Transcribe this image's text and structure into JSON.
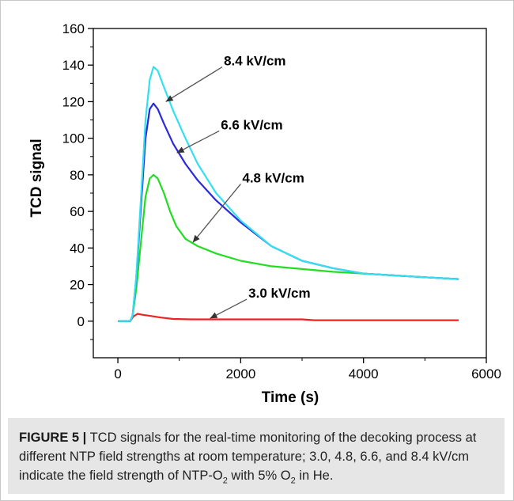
{
  "chart_data": {
    "type": "line",
    "xlabel": "Time (s)",
    "ylabel": "TCD signal",
    "xlim": [
      -400,
      6000
    ],
    "ylim": [
      -20,
      160
    ],
    "xticks": [
      0,
      2000,
      4000,
      6000
    ],
    "yticks": [
      0,
      20,
      40,
      60,
      80,
      100,
      120,
      140,
      160
    ],
    "grid": false,
    "legend": "none",
    "series": [
      {
        "name": "8.4 kV/cm",
        "color": "#33e0f0",
        "x": [
          0,
          200,
          240,
          300,
          380,
          450,
          520,
          580,
          650,
          750,
          900,
          1100,
          1300,
          1600,
          2000,
          2500,
          3000,
          3500,
          4000,
          4500,
          5000,
          5550
        ],
        "y": [
          0,
          0,
          3,
          25,
          70,
          110,
          132,
          139,
          137,
          128,
          115,
          100,
          86,
          70,
          55,
          41,
          33,
          29,
          26,
          25,
          24,
          23
        ]
      },
      {
        "name": "6.6 kV/cm",
        "color": "#2a2ad8",
        "x": [
          0,
          200,
          240,
          300,
          380,
          450,
          520,
          580,
          650,
          750,
          900,
          1100,
          1300,
          1600,
          2000,
          2500,
          3000,
          3500,
          4000,
          4500,
          5000,
          5550
        ],
        "y": [
          0,
          0,
          3,
          24,
          65,
          100,
          116,
          119,
          116,
          108,
          97,
          86,
          77,
          66,
          54,
          41,
          33,
          29,
          26,
          25,
          24,
          23
        ]
      },
      {
        "name": "4.8 kV/cm",
        "color": "#22dd22",
        "x": [
          0,
          200,
          240,
          300,
          380,
          450,
          520,
          580,
          650,
          750,
          850,
          950,
          1100,
          1300,
          1600,
          2000,
          2500,
          3000,
          3500,
          4000,
          4500,
          5000,
          5550
        ],
        "y": [
          0,
          0,
          3,
          18,
          45,
          68,
          78,
          80,
          78,
          70,
          60,
          52,
          45,
          41,
          37,
          33,
          30,
          28.5,
          27,
          26,
          25,
          24,
          23
        ]
      },
      {
        "name": "3.0 kV/cm",
        "color": "#ee2222",
        "x": [
          0,
          200,
          250,
          320,
          400,
          500,
          700,
          900,
          1200,
          1600,
          2000,
          3000,
          3200,
          4000,
          5000,
          5550
        ],
        "y": [
          0,
          0,
          2.5,
          4,
          3.5,
          3,
          2,
          1.2,
          1,
          1,
          1,
          1,
          0.5,
          0.5,
          0.5,
          0.5
        ]
      }
    ],
    "annotations": [
      {
        "text": "8.4 kV/cm",
        "series": 0
      },
      {
        "text": "6.6 kV/cm",
        "series": 1
      },
      {
        "text": "4.8 kV/cm",
        "series": 2
      },
      {
        "text": "3.0 kV/cm",
        "series": 3
      }
    ]
  },
  "caption": {
    "label": "FIGURE 5 |",
    "text1": " TCD signals for the real-time monitoring of the decoking process at different NTP field strengths at room temperature; 3.0, 4.8, 6.6, and 8.4 kV/cm indicate the field strength of NTP-O",
    "sub1": "2",
    "text2": " with 5% O",
    "sub2": "2",
    "text3": " in He."
  }
}
